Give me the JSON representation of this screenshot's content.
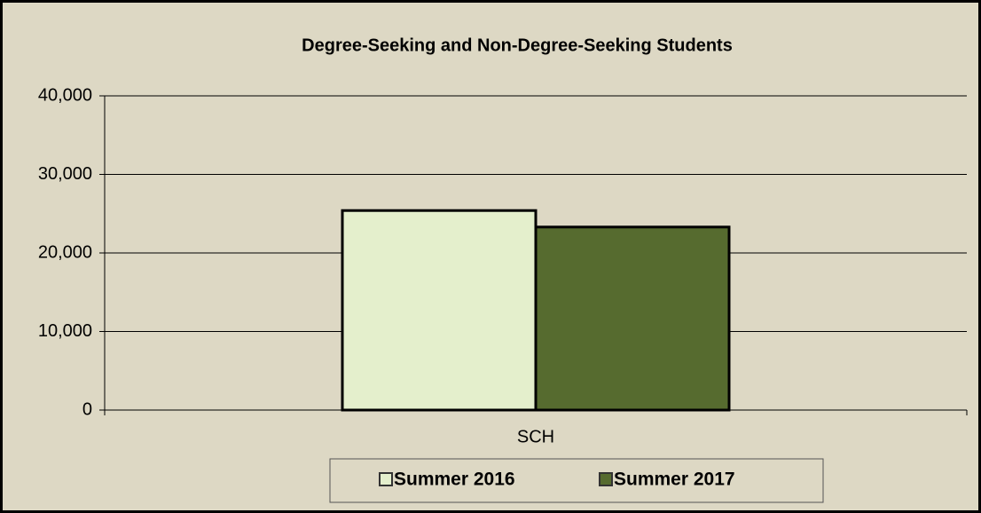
{
  "chart_data": {
    "type": "bar",
    "title": "Degree-Seeking and Non-Degree-Seeking Students",
    "categories": [
      "SCH"
    ],
    "series": [
      {
        "name": "Summer 2016",
        "color": "#e4efcc",
        "values": [
          25400
        ]
      },
      {
        "name": "Summer 2017",
        "color": "#566b2f",
        "values": [
          23300
        ]
      }
    ],
    "ylim": [
      0,
      40000
    ],
    "yticks": [
      0,
      {
        "value": 10000,
        "label": "10,000"
      },
      {
        "value": 20000,
        "label": "20,000"
      },
      {
        "value": 30000,
        "label": "30,000"
      },
      {
        "value": 40000,
        "label": "40,000"
      }
    ],
    "grid": true,
    "legend": "bottom"
  }
}
